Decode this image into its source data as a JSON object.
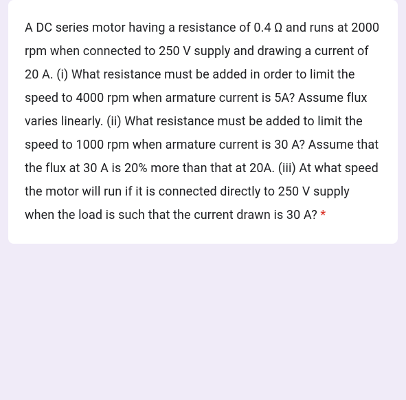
{
  "question": {
    "text": "A DC series motor having a resistance of 0.4 Ω and runs at 2000 rpm when connected to 250 V supply and drawing a current of 20 A. (i) What resistance must be added in order to limit the speed to 4000 rpm when armature current is 5A? Assume flux varies linearly. (ii) What resistance must be added to limit the speed to 1000 rpm when armature current is 30 A? Assume that the flux at 30 A is 20% more than that at 20A. (iii) At what speed the motor will run if it is connected directly to 250 V supply when the load is such that the current drawn is 30 A?",
    "required_marker": " *"
  },
  "styling": {
    "card_background": "#ffffff",
    "page_background": "#f0ebf8",
    "text_color": "#202124",
    "asterisk_color": "#d93025",
    "font_size": 18,
    "line_height": 34,
    "card_border_radius": 8,
    "card_padding": 24
  }
}
